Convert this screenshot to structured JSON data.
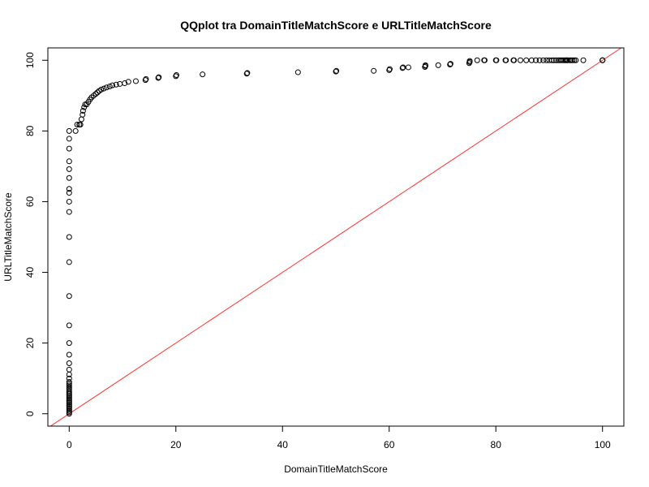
{
  "chart_data": {
    "type": "scatter",
    "title": "QQplot tra DomainTitleMatchScore e URLTitleMatchScore",
    "xlabel": "DomainTitleMatchScore",
    "ylabel": "URLTitleMatchScore",
    "xlim": [
      -4,
      104
    ],
    "ylim": [
      -3.5,
      103.5
    ],
    "xticks": [
      "0",
      "20",
      "40",
      "60",
      "80",
      "100"
    ],
    "yticks": [
      "0",
      "20",
      "40",
      "60",
      "80",
      "100"
    ],
    "grid": false,
    "reference_line": {
      "slope": 1,
      "intercept": 0,
      "color": "#ff3030"
    },
    "point_color": "#000000",
    "points": [
      [
        0,
        0
      ],
      [
        0,
        0.4
      ],
      [
        0,
        0.8
      ],
      [
        0,
        1.2
      ],
      [
        0,
        1.6
      ],
      [
        0,
        2.0
      ],
      [
        0,
        2.4
      ],
      [
        0,
        2.8
      ],
      [
        0,
        3.2
      ],
      [
        0,
        3.6
      ],
      [
        0,
        4.0
      ],
      [
        0,
        4.4
      ],
      [
        0,
        4.8
      ],
      [
        0,
        5.2
      ],
      [
        0,
        5.6
      ],
      [
        0,
        6.0
      ],
      [
        0,
        6.5
      ],
      [
        0,
        7.0
      ],
      [
        0,
        7.5
      ],
      [
        0,
        8.0
      ],
      [
        0,
        8.5
      ],
      [
        0,
        9.0
      ],
      [
        0,
        10.0
      ],
      [
        0,
        11.1
      ],
      [
        0,
        12.5
      ],
      [
        0,
        14.3
      ],
      [
        0,
        16.7
      ],
      [
        0,
        20.0
      ],
      [
        0,
        25.0
      ],
      [
        0,
        33.3
      ],
      [
        0,
        42.9
      ],
      [
        0,
        50.0
      ],
      [
        0,
        57.1
      ],
      [
        0,
        60.0
      ],
      [
        0,
        62.5
      ],
      [
        0,
        63.6
      ],
      [
        0,
        66.7
      ],
      [
        0,
        69.2
      ],
      [
        0,
        71.4
      ],
      [
        0,
        75.0
      ],
      [
        0,
        77.8
      ],
      [
        0,
        80.0
      ],
      [
        1.2,
        80.0
      ],
      [
        1.5,
        81.8
      ],
      [
        1.9,
        81.8
      ],
      [
        2.1,
        81.8
      ],
      [
        2.3,
        83.3
      ],
      [
        2.5,
        84.6
      ],
      [
        2.6,
        85.7
      ],
      [
        2.8,
        86.7
      ],
      [
        3.0,
        87.5
      ],
      [
        3.3,
        87.5
      ],
      [
        3.6,
        88.2
      ],
      [
        3.9,
        88.9
      ],
      [
        4.2,
        89.5
      ],
      [
        4.6,
        90.0
      ],
      [
        5.0,
        90.5
      ],
      [
        5.3,
        90.9
      ],
      [
        5.6,
        91.3
      ],
      [
        6.0,
        91.7
      ],
      [
        6.5,
        92.0
      ],
      [
        7.0,
        92.3
      ],
      [
        7.6,
        92.6
      ],
      [
        8.1,
        92.9
      ],
      [
        8.8,
        93.1
      ],
      [
        9.5,
        93.3
      ],
      [
        10.4,
        93.5
      ],
      [
        11.1,
        93.9
      ],
      [
        12.5,
        94.1
      ],
      [
        14.3,
        94.4
      ],
      [
        14.4,
        94.7
      ],
      [
        16.7,
        95.0
      ],
      [
        16.8,
        95.2
      ],
      [
        20.0,
        95.5
      ],
      [
        20.1,
        95.8
      ],
      [
        25.0,
        96.0
      ],
      [
        33.3,
        96.2
      ],
      [
        33.4,
        96.4
      ],
      [
        42.9,
        96.6
      ],
      [
        50.0,
        96.8
      ],
      [
        50.1,
        97.0
      ],
      [
        57.1,
        97.0
      ],
      [
        60.0,
        97.2
      ],
      [
        60.1,
        97.5
      ],
      [
        62.5,
        97.8
      ],
      [
        62.6,
        98.0
      ],
      [
        63.6,
        98.0
      ],
      [
        66.7,
        98.1
      ],
      [
        66.8,
        98.4
      ],
      [
        66.8,
        98.6
      ],
      [
        69.2,
        98.6
      ],
      [
        71.4,
        98.8
      ],
      [
        71.5,
        99.0
      ],
      [
        75.0,
        99.2
      ],
      [
        75.1,
        99.5
      ],
      [
        75.1,
        99.8
      ],
      [
        76.5,
        100
      ],
      [
        77.8,
        100
      ],
      [
        77.9,
        100
      ],
      [
        80.0,
        100
      ],
      [
        80.1,
        100
      ],
      [
        81.8,
        100
      ],
      [
        81.9,
        100
      ],
      [
        83.3,
        100
      ],
      [
        83.4,
        100
      ],
      [
        84.6,
        100
      ],
      [
        85.7,
        100
      ],
      [
        86.7,
        100
      ],
      [
        87.5,
        100
      ],
      [
        88.2,
        100
      ],
      [
        88.9,
        100
      ],
      [
        89.5,
        100
      ],
      [
        90.0,
        100
      ],
      [
        90.5,
        100
      ],
      [
        90.9,
        100
      ],
      [
        91.3,
        100
      ],
      [
        91.7,
        100
      ],
      [
        92.0,
        100
      ],
      [
        92.3,
        100
      ],
      [
        92.6,
        100
      ],
      [
        92.9,
        100
      ],
      [
        93.1,
        100
      ],
      [
        93.3,
        100
      ],
      [
        93.5,
        100
      ],
      [
        93.9,
        100
      ],
      [
        94.1,
        100
      ],
      [
        94.4,
        100
      ],
      [
        94.7,
        100
      ],
      [
        95.0,
        100
      ],
      [
        96.4,
        100
      ],
      [
        100,
        100
      ],
      [
        100,
        100
      ],
      [
        100,
        100
      ]
    ]
  }
}
